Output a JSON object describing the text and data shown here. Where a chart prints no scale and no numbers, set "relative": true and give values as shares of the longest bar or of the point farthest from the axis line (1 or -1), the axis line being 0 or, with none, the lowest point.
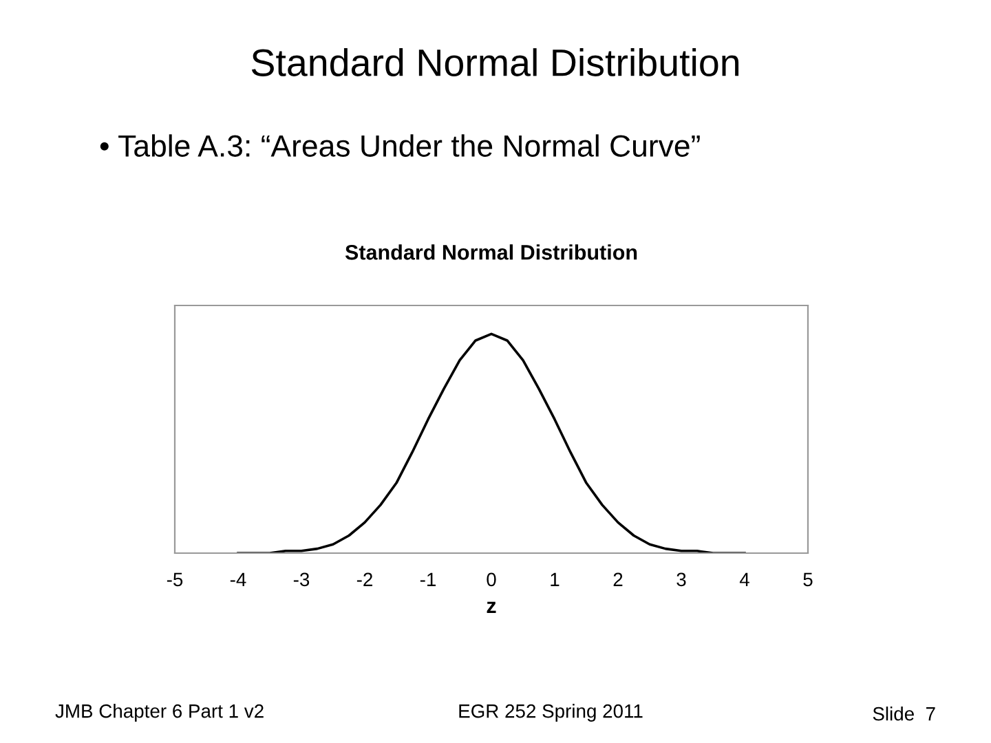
{
  "chart_data": {
    "type": "line",
    "title": "Standard Normal Distribution",
    "annotations": [
      "Standard Normal Distribution",
      "• Table A.3: “Areas Under the Normal Curve”",
      "JMB Chapter 6 Part 1 v2",
      "EGR 252 Spring 2011",
      "Slide  7"
    ],
    "xlabel": "z",
    "relative": true,
    "x": [
      -4,
      -3.75,
      -3.5,
      -3.25,
      -3,
      -2.75,
      -2.5,
      -2.25,
      -2,
      -1.75,
      -1.5,
      -1.25,
      -1,
      -0.75,
      -0.5,
      -0.25,
      0,
      0.25,
      0.5,
      0.75,
      1,
      1.25,
      1.5,
      1.75,
      2,
      2.25,
      2.5,
      2.75,
      3,
      3.25,
      3.5,
      3.75,
      4
    ],
    "series": [
      {
        "color": "#000000",
        "values": [
          0.0,
          0.0,
          0.0,
          0.01,
          0.01,
          0.02,
          0.04,
          0.08,
          0.14,
          0.22,
          0.32,
          0.46,
          0.61,
          0.75,
          0.88,
          0.97,
          1.0,
          0.97,
          0.88,
          0.75,
          0.61,
          0.46,
          0.32,
          0.22,
          0.14,
          0.08,
          0.04,
          0.02,
          0.01,
          0.01,
          0.0,
          0.0,
          0.0
        ]
      }
    ],
    "xlim": [
      -5,
      5
    ],
    "xticks": [
      -5,
      -4,
      -3,
      -2,
      -1,
      0,
      1,
      2,
      3,
      4,
      5
    ],
    "grid": false,
    "legend": false,
    "marker": "none",
    "line_style": "solid"
  }
}
